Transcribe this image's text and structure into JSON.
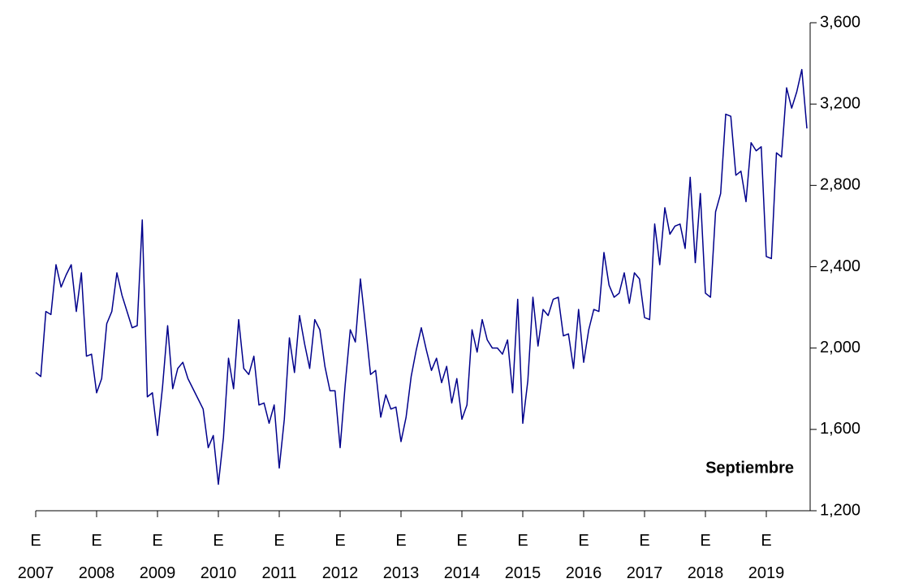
{
  "chart_data": {
    "type": "line",
    "annotation": "Septiembre",
    "categories": [
      "E\n2007",
      null,
      null,
      null,
      null,
      null,
      null,
      null,
      null,
      null,
      null,
      null,
      "E\n2008",
      null,
      null,
      null,
      null,
      null,
      null,
      null,
      null,
      null,
      null,
      null,
      "E\n2009",
      null,
      null,
      null,
      null,
      null,
      null,
      null,
      null,
      null,
      null,
      null,
      "E\n2010",
      null,
      null,
      null,
      null,
      null,
      null,
      null,
      null,
      null,
      null,
      null,
      "E\n2011",
      null,
      null,
      null,
      null,
      null,
      null,
      null,
      null,
      null,
      null,
      null,
      "E\n2012",
      null,
      null,
      null,
      null,
      null,
      null,
      null,
      null,
      null,
      null,
      null,
      "E\n2013",
      null,
      null,
      null,
      null,
      null,
      null,
      null,
      null,
      null,
      null,
      null,
      "E\n2014",
      null,
      null,
      null,
      null,
      null,
      null,
      null,
      null,
      null,
      null,
      null,
      "E\n2015",
      null,
      null,
      null,
      null,
      null,
      null,
      null,
      null,
      null,
      null,
      null,
      "E\n2016",
      null,
      null,
      null,
      null,
      null,
      null,
      null,
      null,
      null,
      null,
      null,
      "E\n2017",
      null,
      null,
      null,
      null,
      null,
      null,
      null,
      null,
      null,
      null,
      null,
      "E\n2018",
      null,
      null,
      null,
      null,
      null,
      null,
      null,
      null,
      null,
      null,
      null,
      "E\n2019",
      null,
      null,
      null,
      null,
      null,
      null,
      null,
      null
    ],
    "series": [
      {
        "color": "#00008b",
        "values": [
          1880,
          1860,
          2180,
          2165,
          2410,
          2300,
          2360,
          2410,
          2180,
          2370,
          1960,
          1970,
          1780,
          1850,
          2120,
          2180,
          2370,
          2260,
          2180,
          2100,
          2110,
          2630,
          1760,
          1780,
          1570,
          1810,
          2110,
          1800,
          1900,
          1930,
          1850,
          1800,
          1750,
          1700,
          1510,
          1570,
          1330,
          1560,
          1950,
          1800,
          2140,
          1900,
          1870,
          1960,
          1720,
          1730,
          1630,
          1720,
          1410,
          1650,
          2050,
          1880,
          2160,
          2020,
          1900,
          2140,
          2090,
          1910,
          1790,
          1790,
          1510,
          1820,
          2090,
          2030,
          2340,
          2110,
          1870,
          1890,
          1660,
          1770,
          1700,
          1710,
          1540,
          1660,
          1860,
          1990,
          2100,
          1990,
          1890,
          1950,
          1830,
          1910,
          1730,
          1850,
          1650,
          1720,
          2090,
          1980,
          2140,
          2040,
          2000,
          2000,
          1970,
          2040,
          1780,
          2240,
          1630,
          1840,
          2250,
          2010,
          2190,
          2160,
          2240,
          2250,
          2060,
          2070,
          1900,
          2190,
          1930,
          2090,
          2190,
          2180,
          2470,
          2310,
          2250,
          2270,
          2370,
          2220,
          2370,
          2340,
          2150,
          2140,
          2610,
          2410,
          2690,
          2560,
          2600,
          2610,
          2490,
          2840,
          2420,
          2760,
          2270,
          2250,
          2670,
          2760,
          3150,
          3140,
          2850,
          2870,
          2720,
          3010,
          2970,
          2990,
          2450,
          2440,
          2960,
          2940,
          3280,
          3180,
          3260,
          3370,
          3080
        ]
      }
    ],
    "ylim": [
      1200,
      3600
    ],
    "yticks": [
      {
        "value": 1200,
        "label": "1,200"
      },
      {
        "value": 1600,
        "label": "1,600"
      },
      {
        "value": 2000,
        "label": "2,000"
      },
      {
        "value": 2400,
        "label": "2,400"
      },
      {
        "value": 2800,
        "label": "2,800"
      },
      {
        "value": 3200,
        "label": "3,200"
      },
      {
        "value": 3600,
        "label": "3,600"
      }
    ],
    "y_axis_side": "right"
  }
}
